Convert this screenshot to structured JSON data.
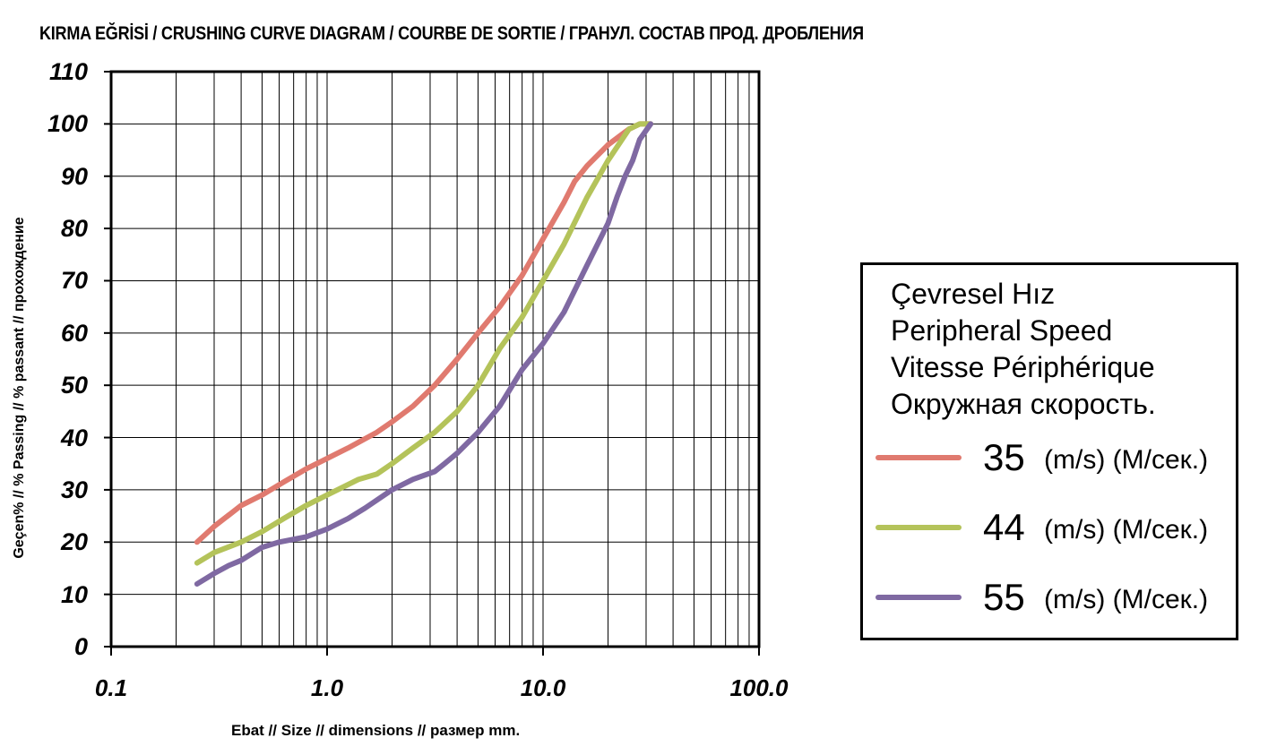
{
  "chart_data": {
    "type": "line",
    "title": "KIRMA EĞRİSİ / CRUSHING CURVE DIAGRAM / COURBE DE SORTIE / ГРАНУЛ. СОСТАВ ПРОД. ДРОБЛЕНИЯ",
    "xlabel": "Ebat // Size // dimensions // размер  mm.",
    "ylabel": "Geçen% // % Passing // % passant // прохождение",
    "xscale": "log",
    "xlim": [
      0.1,
      100
    ],
    "ylim": [
      0,
      110
    ],
    "grid": true,
    "y_ticks": [
      "0",
      "10",
      "20",
      "30",
      "40",
      "50",
      "60",
      "70",
      "80",
      "90",
      "100",
      "110"
    ],
    "x_ticks": [
      "0.1",
      "1.0",
      "10.0",
      "100.0"
    ],
    "legend": {
      "title_lines": [
        "Çevresel Hız",
        "Peripheral Speed",
        "Vitesse Périphérique",
        "Окружная скорость."
      ],
      "unit": "(m/s) (М/сек.)"
    },
    "series": [
      {
        "name": "35",
        "color": "#e07a6f",
        "x": [
          0.25,
          0.3,
          0.4,
          0.5,
          0.63,
          0.8,
          1.0,
          1.25,
          1.7,
          2.0,
          2.5,
          3.15,
          4.0,
          5.0,
          6.3,
          8.0,
          10.0,
          12.5,
          14.0,
          16.0,
          20.0,
          25.0,
          28.0,
          31.5
        ],
        "y": [
          20,
          23,
          27,
          29,
          31.5,
          34,
          36,
          38,
          41,
          43,
          46,
          50,
          55,
          60,
          65,
          71,
          78,
          85,
          89,
          92,
          96,
          99,
          100,
          100
        ]
      },
      {
        "name": "44",
        "color": "#b4c35a",
        "x": [
          0.25,
          0.3,
          0.4,
          0.5,
          0.63,
          0.8,
          1.0,
          1.25,
          1.4,
          1.7,
          2.0,
          2.5,
          3.15,
          4.0,
          5.0,
          6.3,
          8.0,
          10.0,
          12.5,
          16.0,
          20.0,
          25.0,
          28.0,
          31.5
        ],
        "y": [
          16,
          18,
          20,
          22,
          24.5,
          27,
          29,
          31,
          32,
          33,
          35,
          38,
          41,
          45,
          50,
          57,
          63,
          70,
          77,
          86,
          93,
          99,
          100,
          100
        ]
      },
      {
        "name": "55",
        "color": "#7f69a2",
        "x": [
          0.25,
          0.3,
          0.35,
          0.4,
          0.5,
          0.6,
          0.8,
          1.0,
          1.25,
          1.5,
          2.0,
          2.5,
          3.15,
          3.5,
          4.0,
          5.0,
          6.3,
          8.0,
          10.0,
          12.5,
          16.0,
          20.0,
          22.0,
          24.0,
          26.0,
          28.0,
          31.5
        ],
        "y": [
          12,
          14,
          15.5,
          16.5,
          19,
          20,
          21,
          22.5,
          24.5,
          26.5,
          30,
          32,
          33.5,
          35,
          37,
          41,
          46,
          53,
          58,
          64,
          73,
          81,
          86,
          90,
          93,
          97,
          100
        ]
      }
    ]
  }
}
